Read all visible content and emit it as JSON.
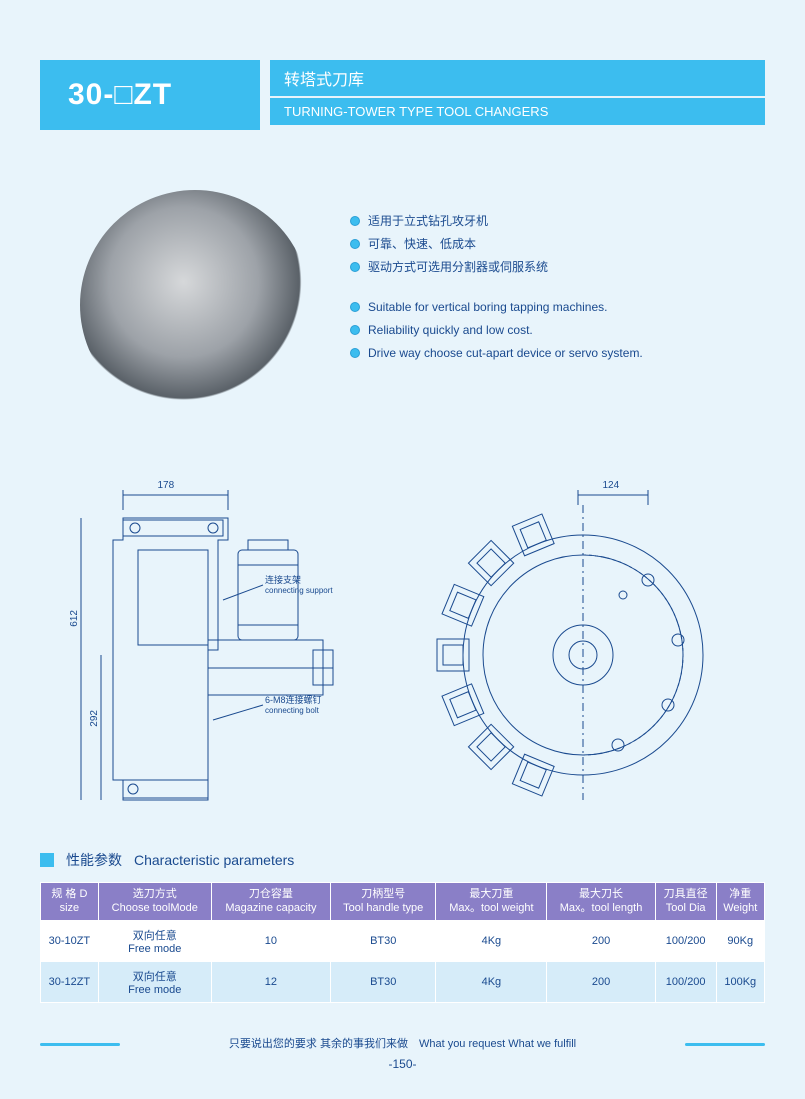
{
  "header": {
    "model": "30-□ZT",
    "title_cn": "转塔式刀库",
    "title_en": "TURNING-TOWER TYPE TOOL CHANGERS"
  },
  "bullets_cn": [
    "适用于立式钻孔攻牙机",
    "可靠、快速、低成本",
    "驱动方式可选用分割器或伺服系统"
  ],
  "bullets_en": [
    "Suitable for vertical boring tapping machines.",
    "Reliability quickly and low cost.",
    "Drive way choose cut-apart device or servo system."
  ],
  "diagram1": {
    "dim_top": "178",
    "dim_h1": "612",
    "dim_h2": "292",
    "label1_cn": "连接支架",
    "label1_en": "connecting support",
    "label2_cn": "6-M8连接螺钉",
    "label2_en": "connecting bolt"
  },
  "diagram2": {
    "dim_top": "124"
  },
  "section": {
    "title_cn": "性能参数",
    "title_en": "Characteristic parameters"
  },
  "table": {
    "columns": [
      {
        "cn": "规 格 D",
        "en": "size"
      },
      {
        "cn": "选刀方式",
        "en": "Choose toolMode"
      },
      {
        "cn": "刀仓容量",
        "en": "Magazine capacity"
      },
      {
        "cn": "刀柄型号",
        "en": "Tool handle type"
      },
      {
        "cn": "最大刀重",
        "en": "Max。tool weight"
      },
      {
        "cn": "最大刀长",
        "en": "Max。tool length"
      },
      {
        "cn": "刀具直径",
        "en": "Tool Dia"
      },
      {
        "cn": "净重",
        "en": "Weight"
      }
    ],
    "rows": [
      [
        "30-10ZT",
        "双向任意\nFree mode",
        "10",
        "BT30",
        "4Kg",
        "200",
        "100/200",
        "90Kg"
      ],
      [
        "30-12ZT",
        "双向任意\nFree mode",
        "12",
        "BT30",
        "4Kg",
        "200",
        "100/200",
        "100Kg"
      ]
    ]
  },
  "footer": {
    "slogan": "只要说出您的要求  其余的事我们来做　What you request What we fulfill",
    "page": "-150-"
  },
  "colors": {
    "accent": "#3cbdef",
    "header_purple": "#8a7fc7",
    "text_blue": "#1a4a8f",
    "row_alt": "#d6ecf9",
    "page_bg": "#e8f4fb"
  }
}
